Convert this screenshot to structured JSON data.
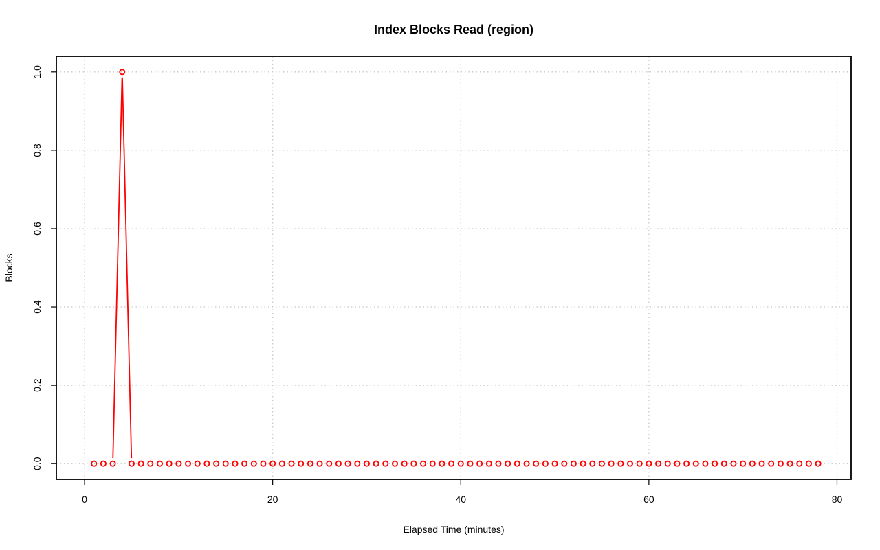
{
  "chart_data": {
    "type": "line",
    "title": "Index Blocks Read (region)",
    "xlabel": "Elapsed Time (minutes)",
    "ylabel": "Blocks",
    "xlim": [
      -3,
      81.5
    ],
    "ylim": [
      -0.04,
      1.04
    ],
    "xticks": [
      0,
      20,
      40,
      60,
      80
    ],
    "yticks": [
      0.0,
      0.2,
      0.4,
      0.6,
      0.8,
      1.0
    ],
    "xtick_labels": [
      "0",
      "20",
      "40",
      "60",
      "80"
    ],
    "ytick_labels": [
      "0.0",
      "0.2",
      "0.4",
      "0.6",
      "0.8",
      "1.0"
    ],
    "grid": true,
    "series_color": "#ff0000",
    "x": [
      1,
      2,
      3,
      4,
      5,
      6,
      7,
      8,
      9,
      10,
      11,
      12,
      13,
      14,
      15,
      16,
      17,
      18,
      19,
      20,
      21,
      22,
      23,
      24,
      25,
      26,
      27,
      28,
      29,
      30,
      31,
      32,
      33,
      34,
      35,
      36,
      37,
      38,
      39,
      40,
      41,
      42,
      43,
      44,
      45,
      46,
      47,
      48,
      49,
      50,
      51,
      52,
      53,
      54,
      55,
      56,
      57,
      58,
      59,
      60,
      61,
      62,
      63,
      64,
      65,
      66,
      67,
      68,
      69,
      70,
      71,
      72,
      73,
      74,
      75,
      76,
      77,
      78
    ],
    "y": [
      0,
      0,
      0,
      1,
      0,
      0,
      0,
      0,
      0,
      0,
      0,
      0,
      0,
      0,
      0,
      0,
      0,
      0,
      0,
      0,
      0,
      0,
      0,
      0,
      0,
      0,
      0,
      0,
      0,
      0,
      0,
      0,
      0,
      0,
      0,
      0,
      0,
      0,
      0,
      0,
      0,
      0,
      0,
      0,
      0,
      0,
      0,
      0,
      0,
      0,
      0,
      0,
      0,
      0,
      0,
      0,
      0,
      0,
      0,
      0,
      0,
      0,
      0,
      0,
      0,
      0,
      0,
      0,
      0,
      0,
      0,
      0,
      0,
      0,
      0,
      0,
      0,
      0
    ]
  }
}
